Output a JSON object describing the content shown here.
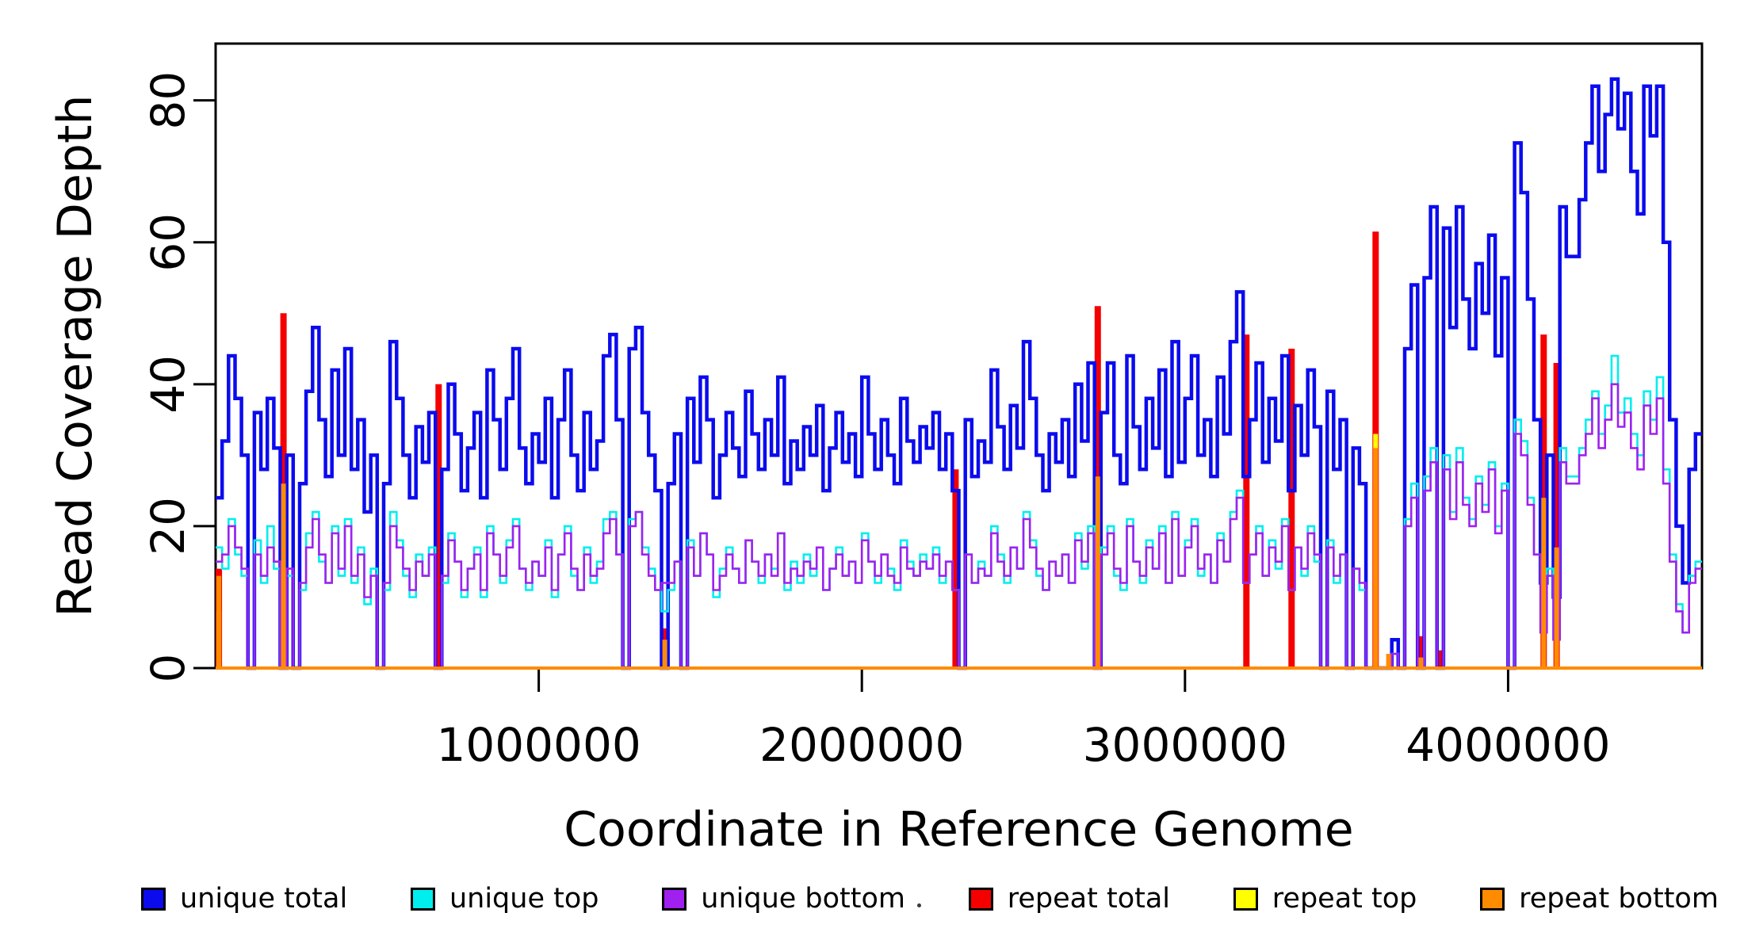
{
  "chart_data": {
    "type": "line",
    "subtype": "step-coverage",
    "title": "",
    "xlabel": "Coordinate in Reference Genome",
    "ylabel": "Read Coverage Depth",
    "xlim": [
      0,
      4600000
    ],
    "ylim": [
      0,
      88
    ],
    "grid": false,
    "legend_position": "bottom",
    "bin_size": 20000,
    "x_ticks": [
      1000000,
      2000000,
      3000000,
      4000000
    ],
    "x_tick_labels": [
      "1000000",
      "2000000",
      "3000000",
      "4000000"
    ],
    "y_ticks": [
      0,
      20,
      40,
      60,
      80
    ],
    "y_tick_labels": [
      "0",
      "20",
      "40",
      "60",
      "80"
    ],
    "series": [
      {
        "name": "unique total",
        "color": "#0b0bee",
        "width": 4.5,
        "render": "step",
        "values": [
          24,
          32,
          44,
          38,
          30,
          0,
          36,
          28,
          38,
          31,
          0,
          30,
          0,
          26,
          39,
          48,
          35,
          27,
          42,
          30,
          45,
          28,
          35,
          22,
          30,
          0,
          26,
          46,
          38,
          30,
          24,
          34,
          29,
          36,
          0,
          28,
          40,
          33,
          25,
          31,
          36,
          24,
          42,
          35,
          28,
          38,
          45,
          31,
          26,
          33,
          29,
          38,
          24,
          35,
          42,
          30,
          25,
          36,
          28,
          32,
          44,
          47,
          35,
          0,
          45,
          48,
          36,
          30,
          25,
          0,
          26,
          33,
          0,
          38,
          29,
          41,
          35,
          24,
          30,
          36,
          31,
          27,
          39,
          33,
          28,
          35,
          30,
          41,
          26,
          32,
          28,
          34,
          30,
          37,
          25,
          31,
          36,
          29,
          33,
          27,
          41,
          33,
          28,
          35,
          30,
          26,
          38,
          32,
          29,
          34,
          31,
          36,
          28,
          33,
          25,
          0,
          35,
          27,
          32,
          29,
          42,
          34,
          28,
          37,
          31,
          46,
          38,
          30,
          25,
          33,
          29,
          35,
          27,
          40,
          32,
          43,
          0,
          36,
          43,
          30,
          26,
          44,
          34,
          28,
          38,
          31,
          42,
          27,
          46,
          29,
          38,
          44,
          30,
          35,
          27,
          41,
          33,
          46,
          53,
          27,
          35,
          43,
          29,
          38,
          32,
          44,
          25,
          37,
          30,
          42,
          34,
          0,
          39,
          28,
          35,
          0,
          31,
          26,
          0,
          0,
          0,
          0,
          4,
          0,
          45,
          54,
          0,
          55,
          65,
          0,
          62,
          48,
          65,
          52,
          45,
          57,
          50,
          61,
          44,
          55,
          0,
          74,
          67,
          52,
          35,
          12,
          30,
          10,
          65,
          58,
          58,
          66,
          74,
          82,
          70,
          78,
          83,
          76,
          81,
          70,
          64,
          82,
          75,
          82,
          60,
          35,
          20,
          12,
          28,
          33
        ]
      },
      {
        "name": "unique top",
        "color": "#00eeee",
        "width": 2.6,
        "render": "step",
        "values": [
          17,
          14,
          21,
          16,
          13,
          0,
          18,
          12,
          20,
          14,
          0,
          13,
          0,
          11,
          19,
          22,
          15,
          12,
          20,
          13,
          21,
          12,
          17,
          9,
          14,
          0,
          11,
          22,
          18,
          13,
          10,
          16,
          13,
          17,
          0,
          12,
          19,
          15,
          10,
          14,
          17,
          10,
          20,
          16,
          12,
          18,
          21,
          14,
          11,
          15,
          13,
          18,
          10,
          16,
          20,
          13,
          11,
          17,
          12,
          15,
          21,
          22,
          16,
          0,
          21,
          22,
          17,
          14,
          11,
          8,
          11,
          15,
          0,
          18,
          13,
          19,
          16,
          10,
          14,
          17,
          14,
          12,
          18,
          15,
          12,
          16,
          14,
          19,
          11,
          15,
          12,
          16,
          13,
          17,
          11,
          14,
          17,
          13,
          15,
          12,
          19,
          15,
          12,
          16,
          14,
          11,
          18,
          15,
          13,
          16,
          14,
          17,
          12,
          15,
          11,
          0,
          16,
          12,
          15,
          13,
          20,
          16,
          12,
          17,
          14,
          22,
          18,
          13,
          11,
          15,
          13,
          16,
          12,
          19,
          14,
          20,
          0,
          17,
          20,
          13,
          11,
          21,
          15,
          12,
          18,
          14,
          20,
          12,
          22,
          13,
          18,
          21,
          13,
          16,
          12,
          19,
          15,
          22,
          25,
          12,
          16,
          20,
          13,
          18,
          14,
          21,
          11,
          17,
          13,
          20,
          15,
          0,
          18,
          12,
          16,
          0,
          14,
          11,
          0,
          0,
          0,
          0,
          2,
          0,
          21,
          26,
          0,
          27,
          31,
          0,
          30,
          22,
          31,
          24,
          21,
          27,
          23,
          29,
          20,
          26,
          0,
          35,
          32,
          24,
          16,
          5,
          14,
          4,
          31,
          27,
          27,
          31,
          35,
          39,
          33,
          37,
          44,
          36,
          38,
          33,
          30,
          39,
          35,
          41,
          28,
          16,
          9,
          5,
          13,
          15
        ]
      },
      {
        "name": "unique bottom",
        "color": "#a020f0",
        "width": 2.6,
        "render": "step",
        "values": [
          15,
          16,
          20,
          17,
          14,
          0,
          16,
          13,
          17,
          15,
          0,
          14,
          0,
          12,
          17,
          21,
          16,
          12,
          19,
          14,
          20,
          13,
          16,
          10,
          13,
          0,
          12,
          20,
          17,
          14,
          11,
          15,
          13,
          16,
          0,
          13,
          18,
          15,
          11,
          14,
          16,
          11,
          19,
          16,
          13,
          17,
          20,
          14,
          12,
          15,
          13,
          17,
          11,
          16,
          19,
          14,
          11,
          16,
          13,
          14,
          19,
          21,
          16,
          0,
          20,
          22,
          16,
          13,
          11,
          12,
          12,
          15,
          0,
          17,
          13,
          19,
          16,
          11,
          13,
          16,
          14,
          12,
          18,
          15,
          13,
          16,
          13,
          19,
          12,
          14,
          13,
          15,
          14,
          17,
          11,
          14,
          16,
          13,
          15,
          12,
          18,
          15,
          13,
          16,
          13,
          12,
          17,
          14,
          13,
          15,
          14,
          16,
          13,
          15,
          11,
          0,
          16,
          12,
          14,
          13,
          19,
          15,
          13,
          17,
          14,
          21,
          17,
          14,
          11,
          15,
          13,
          16,
          12,
          18,
          15,
          19,
          0,
          16,
          19,
          14,
          12,
          20,
          15,
          13,
          17,
          14,
          19,
          12,
          21,
          13,
          17,
          20,
          14,
          16,
          12,
          18,
          15,
          21,
          24,
          12,
          16,
          19,
          13,
          17,
          15,
          20,
          11,
          17,
          14,
          19,
          16,
          0,
          17,
          13,
          16,
          0,
          14,
          12,
          0,
          0,
          0,
          0,
          2,
          0,
          20,
          24,
          0,
          25,
          29,
          0,
          28,
          21,
          29,
          23,
          20,
          26,
          22,
          28,
          19,
          25,
          0,
          33,
          30,
          23,
          16,
          5,
          13,
          4,
          29,
          26,
          26,
          30,
          33,
          38,
          31,
          35,
          40,
          34,
          36,
          31,
          28,
          37,
          33,
          38,
          26,
          15,
          8,
          5,
          12,
          14
        ]
      },
      {
        "name": "repeat total",
        "color": "#f40000",
        "width": 8,
        "render": "spikes",
        "spikes": [
          [
            0,
            14
          ],
          [
            10,
            50
          ],
          [
            34,
            40
          ],
          [
            69,
            5.6
          ],
          [
            114,
            28
          ],
          [
            136,
            51
          ],
          [
            159,
            47
          ],
          [
            166,
            45
          ],
          [
            179,
            61.5
          ],
          [
            186,
            4.5
          ],
          [
            189,
            2.5
          ],
          [
            205,
            47
          ],
          [
            207,
            43
          ]
        ]
      },
      {
        "name": "repeat top",
        "color": "#ffff00",
        "width": 6,
        "render": "spikes",
        "spikes": [
          [
            0,
            8
          ],
          [
            179,
            33
          ]
        ]
      },
      {
        "name": "repeat bottom",
        "color": "#ff8c00",
        "width": 6,
        "render": "spikes",
        "baseline": true,
        "spikes": [
          [
            0,
            13
          ],
          [
            10,
            26
          ],
          [
            69,
            4
          ],
          [
            136,
            27
          ],
          [
            179,
            31
          ],
          [
            181,
            2
          ],
          [
            186,
            1.5
          ],
          [
            205,
            24
          ],
          [
            207,
            17
          ]
        ]
      }
    ],
    "legend": [
      {
        "label": "unique total",
        "color": "#0b0bee"
      },
      {
        "label": "unique top",
        "color": "#00eeee"
      },
      {
        "label": "unique bottom",
        "color": "#a020f0"
      },
      {
        "label": "repeat total",
        "color": "#f40000"
      },
      {
        "label": "repeat top",
        "color": "#ffff00"
      },
      {
        "label": "repeat bottom",
        "color": "#ff8c00"
      }
    ],
    "draw_order": [
      "repeat total",
      "unique total",
      "unique top",
      "unique bottom",
      "repeat top",
      "repeat bottom"
    ],
    "axis_color": "#000000"
  }
}
